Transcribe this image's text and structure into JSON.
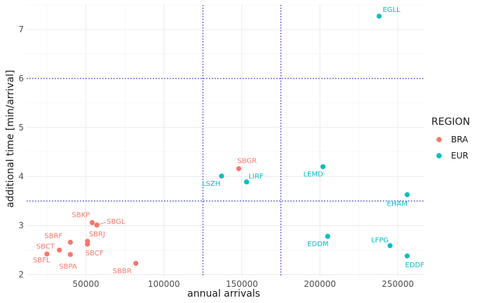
{
  "chart_data": {
    "type": "scatter",
    "xlabel": "annual arrivals",
    "ylabel": "additional time [min/arrival]",
    "xlim": [
      12000,
      267000
    ],
    "ylim": [
      1.95,
      7.5
    ],
    "x_ticks": [
      50000,
      100000,
      150000,
      200000,
      250000
    ],
    "x_tick_labels": [
      "50000",
      "100000",
      "150000",
      "200000",
      "250000"
    ],
    "y_ticks": [
      2,
      3,
      4,
      5,
      6,
      7
    ],
    "y_tick_labels": [
      "2",
      "3",
      "4",
      "5",
      "6",
      "7"
    ],
    "grid": true,
    "legend_title": "REGION",
    "legend_position": "right",
    "series": [
      {
        "name": "BRA",
        "color": "#F8766D",
        "points": [
          {
            "label": "SBGR",
            "x": 148000,
            "y": 4.16
          },
          {
            "label": "SBKP",
            "x": 54000,
            "y": 3.06
          },
          {
            "label": "SBGL",
            "x": 57000,
            "y": 3.01
          },
          {
            "label": "SBRF",
            "x": 40000,
            "y": 2.66
          },
          {
            "label": "SBRJ",
            "x": 51000,
            "y": 2.68
          },
          {
            "label": "SBCF",
            "x": 51000,
            "y": 2.62
          },
          {
            "label": "SBCT",
            "x": 33000,
            "y": 2.5
          },
          {
            "label": "SBFL",
            "x": 25000,
            "y": 2.42
          },
          {
            "label": "SBPA",
            "x": 40000,
            "y": 2.41
          },
          {
            "label": "SBBR",
            "x": 82000,
            "y": 2.23
          }
        ]
      },
      {
        "name": "EUR",
        "color": "#00BFC4",
        "points": [
          {
            "label": "EGLL",
            "x": 238000,
            "y": 7.27
          },
          {
            "label": "LEMD",
            "x": 202000,
            "y": 4.2
          },
          {
            "label": "LSZH",
            "x": 137000,
            "y": 4.01
          },
          {
            "label": "LIRF",
            "x": 153000,
            "y": 3.89
          },
          {
            "label": "EHAM",
            "x": 256000,
            "y": 3.63
          },
          {
            "label": "EDDM",
            "x": 205000,
            "y": 2.78
          },
          {
            "label": "LFPG",
            "x": 245000,
            "y": 2.59
          },
          {
            "label": "EDDF",
            "x": 256000,
            "y": 2.38
          }
        ]
      }
    ],
    "reference_lines": {
      "vertical": [
        125000,
        175000
      ],
      "horizontal": [
        3.5,
        6.0
      ],
      "color": "#0000CD",
      "style": "dotted"
    }
  }
}
